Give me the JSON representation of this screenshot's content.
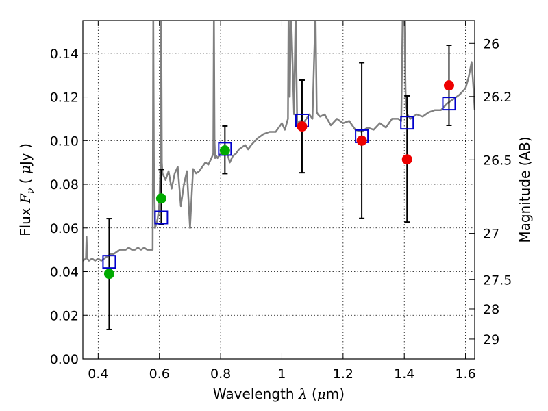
{
  "chart_data": {
    "type": "scatter",
    "xlabel": "Wavelength  λ (μm)",
    "ylabel": "Flux  Fν ( μJy )",
    "y2label": "Magnitude (AB)",
    "xlim": [
      0.35,
      1.63
    ],
    "ylim": [
      0.0,
      0.155
    ],
    "grid": true,
    "x_ticks": [
      0.4,
      0.6,
      0.8,
      1.0,
      1.2,
      1.4,
      1.6
    ],
    "x_tick_labels": [
      "0.4",
      "0.6",
      "0.8",
      "1",
      "1.2",
      "1.4",
      "1.6"
    ],
    "y_ticks": [
      0.0,
      0.02,
      0.04,
      0.06,
      0.08,
      0.1,
      0.12,
      0.14
    ],
    "y_tick_labels": [
      "0.00",
      "0.02",
      "0.04",
      "0.06",
      "0.08",
      "0.10",
      "0.12",
      "0.14"
    ],
    "mag_ticks": [
      26,
      26.2,
      26.5,
      27,
      27.5,
      28,
      29
    ],
    "mag_tick_labels": [
      "26",
      "26.2",
      "26.5",
      "27",
      "27.5",
      "28",
      "29"
    ],
    "colors": {
      "model": "#808080",
      "observed_red": "#ee0000",
      "observed_green": "#00aa00",
      "synthetic": "#0000cc",
      "error": "#000000"
    },
    "model_spectrum": {
      "name": "model SED",
      "x": [
        0.35,
        0.36,
        0.362,
        0.364,
        0.37,
        0.38,
        0.39,
        0.4,
        0.41,
        0.42,
        0.43,
        0.44,
        0.45,
        0.46,
        0.47,
        0.48,
        0.49,
        0.5,
        0.51,
        0.52,
        0.53,
        0.54,
        0.55,
        0.56,
        0.57,
        0.578,
        0.58,
        0.582,
        0.586,
        0.59,
        0.594,
        0.598,
        0.6,
        0.602,
        0.604,
        0.606,
        0.608,
        0.61,
        0.62,
        0.63,
        0.64,
        0.65,
        0.66,
        0.67,
        0.68,
        0.69,
        0.7,
        0.71,
        0.72,
        0.73,
        0.74,
        0.75,
        0.76,
        0.77,
        0.776,
        0.778,
        0.78,
        0.782,
        0.786,
        0.79,
        0.8,
        0.81,
        0.82,
        0.83,
        0.84,
        0.85,
        0.86,
        0.87,
        0.88,
        0.89,
        0.9,
        0.92,
        0.94,
        0.96,
        0.98,
        0.99,
        1.0,
        1.01,
        1.02,
        1.022,
        1.026,
        1.03,
        1.04,
        1.045,
        1.05,
        1.06,
        1.07,
        1.08,
        1.09,
        1.1,
        1.11,
        1.114,
        1.118,
        1.125,
        1.14,
        1.16,
        1.18,
        1.2,
        1.22,
        1.24,
        1.26,
        1.28,
        1.3,
        1.32,
        1.34,
        1.36,
        1.38,
        1.39,
        1.395,
        1.4,
        1.405,
        1.41,
        1.42,
        1.44,
        1.46,
        1.48,
        1.5,
        1.52,
        1.54,
        1.56,
        1.58,
        1.6,
        1.61,
        1.62,
        1.625,
        1.63
      ],
      "y": [
        0.045,
        0.046,
        0.056,
        0.046,
        0.045,
        0.046,
        0.045,
        0.046,
        0.045,
        0.046,
        0.047,
        0.048,
        0.048,
        0.049,
        0.05,
        0.05,
        0.05,
        0.051,
        0.05,
        0.05,
        0.051,
        0.05,
        0.051,
        0.05,
        0.05,
        0.05,
        0.16,
        0.09,
        0.06,
        0.062,
        0.064,
        0.068,
        0.072,
        0.082,
        0.09,
        0.16,
        0.09,
        0.085,
        0.082,
        0.086,
        0.078,
        0.085,
        0.088,
        0.07,
        0.08,
        0.086,
        0.06,
        0.087,
        0.085,
        0.086,
        0.088,
        0.09,
        0.089,
        0.092,
        0.094,
        0.16,
        0.1,
        0.092,
        0.093,
        0.092,
        0.094,
        0.096,
        0.095,
        0.09,
        0.093,
        0.094,
        0.096,
        0.097,
        0.098,
        0.096,
        0.098,
        0.101,
        0.103,
        0.104,
        0.104,
        0.106,
        0.108,
        0.105,
        0.11,
        0.16,
        0.12,
        0.16,
        0.112,
        0.16,
        0.108,
        0.109,
        0.108,
        0.11,
        0.112,
        0.11,
        0.16,
        0.113,
        0.112,
        0.111,
        0.112,
        0.107,
        0.11,
        0.108,
        0.109,
        0.105,
        0.104,
        0.106,
        0.105,
        0.108,
        0.106,
        0.11,
        0.11,
        0.109,
        0.16,
        0.16,
        0.115,
        0.112,
        0.11,
        0.112,
        0.111,
        0.113,
        0.114,
        0.114,
        0.117,
        0.119,
        0.121,
        0.124,
        0.129,
        0.136,
        0.126,
        0.114
      ]
    },
    "observed": [
      {
        "x": 0.436,
        "y": 0.039,
        "yerr_lo": 0.0135,
        "yerr_hi": 0.0643,
        "color": "green"
      },
      {
        "x": 0.606,
        "y": 0.0735,
        "yerr_lo": 0.0615,
        "yerr_hi": 0.0868,
        "color": "green"
      },
      {
        "x": 0.814,
        "y": 0.0955,
        "yerr_lo": 0.0849,
        "yerr_hi": 0.1067,
        "color": "green"
      },
      {
        "x": 1.066,
        "y": 0.1065,
        "yerr_lo": 0.0853,
        "yerr_hi": 0.1277,
        "color": "red"
      },
      {
        "x": 1.261,
        "y": 0.1,
        "yerr_lo": 0.0644,
        "yerr_hi": 0.1357,
        "color": "red"
      },
      {
        "x": 1.409,
        "y": 0.0914,
        "yerr_lo": 0.0627,
        "yerr_hi": 0.1205,
        "color": "red"
      },
      {
        "x": 1.546,
        "y": 0.1253,
        "yerr_lo": 0.107,
        "yerr_hi": 0.1437,
        "color": "red"
      }
    ],
    "synthetic": [
      {
        "x": 0.436,
        "y": 0.0445
      },
      {
        "x": 0.606,
        "y": 0.0648
      },
      {
        "x": 0.814,
        "y": 0.0962
      },
      {
        "x": 1.066,
        "y": 0.1092
      },
      {
        "x": 1.261,
        "y": 0.102
      },
      {
        "x": 1.409,
        "y": 0.1082
      },
      {
        "x": 1.546,
        "y": 0.117
      }
    ]
  }
}
